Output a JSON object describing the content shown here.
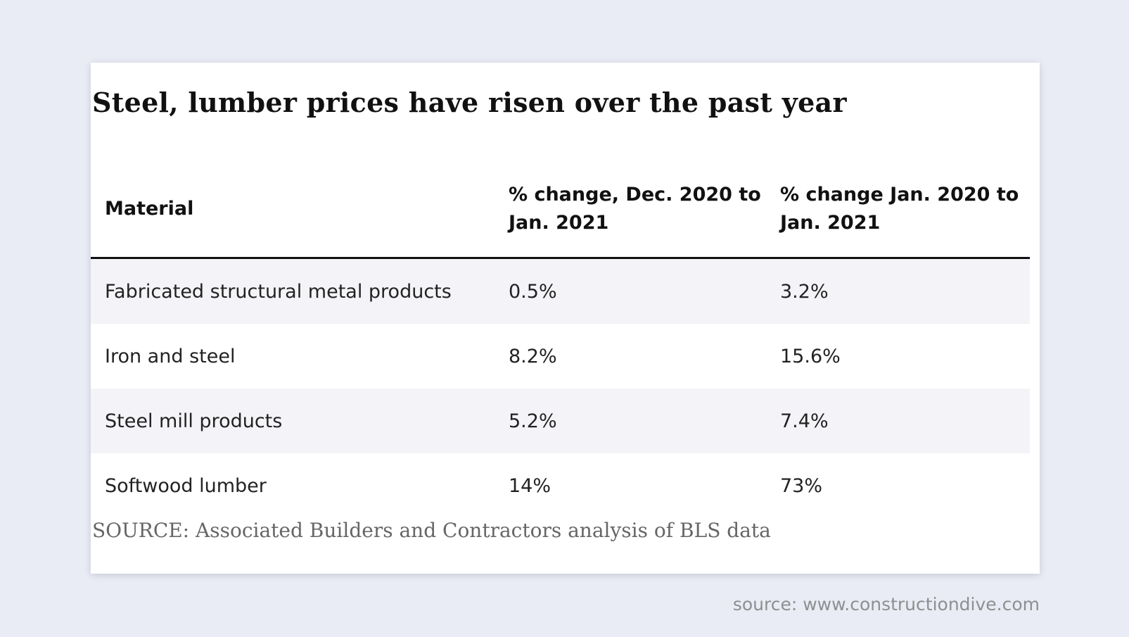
{
  "chart_data": {
    "type": "table",
    "title": "Steel, lumber prices have risen over the past year",
    "columns": [
      "Material",
      "% change, Dec. 2020 to Jan. 2021",
      "% change Jan. 2020 to Jan. 2021"
    ],
    "rows": [
      {
        "material": "Fabricated structural metal products",
        "dec2020_jan2021": "0.5%",
        "jan2020_jan2021": "3.2%"
      },
      {
        "material": "Iron and steel",
        "dec2020_jan2021": "8.2%",
        "jan2020_jan2021": "15.6%"
      },
      {
        "material": "Steel mill products",
        "dec2020_jan2021": "5.2%",
        "jan2020_jan2021": "7.4%"
      },
      {
        "material": "Softwood lumber",
        "dec2020_jan2021": "14%",
        "jan2020_jan2021": "73%"
      }
    ],
    "source_note": "SOURCE: Associated Builders and Contractors analysis of BLS data"
  },
  "credit": "source: www.constructiondive.com"
}
